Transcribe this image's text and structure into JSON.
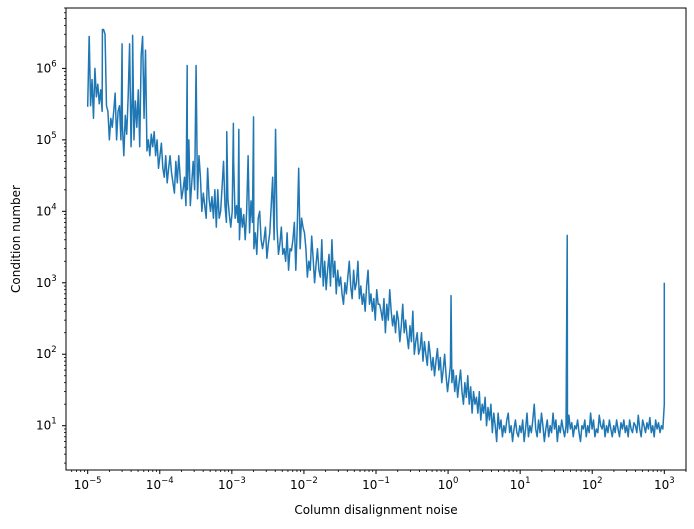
{
  "chart_data": {
    "type": "line",
    "title": "",
    "xlabel": "Column disalignment noise",
    "ylabel": "Condition number",
    "xscale": "log",
    "yscale": "log",
    "xlim": [
      5e-06,
      2000
    ],
    "ylim": [
      2.4,
      7000000
    ],
    "grid": false,
    "color": "#1f77b4",
    "x_ticks": [
      {
        "base": "10",
        "exp": "−5",
        "value": 1e-05
      },
      {
        "base": "10",
        "exp": "−4",
        "value": 0.0001
      },
      {
        "base": "10",
        "exp": "−3",
        "value": 0.001
      },
      {
        "base": "10",
        "exp": "−2",
        "value": 0.01
      },
      {
        "base": "10",
        "exp": "−1",
        "value": 0.1
      },
      {
        "base": "10",
        "exp": "0",
        "value": 1
      },
      {
        "base": "10",
        "exp": "1",
        "value": 10
      },
      {
        "base": "10",
        "exp": "2",
        "value": 100
      },
      {
        "base": "10",
        "exp": "3",
        "value": 1000
      }
    ],
    "y_ticks": [
      {
        "base": "10",
        "exp": "1",
        "value": 10
      },
      {
        "base": "10",
        "exp": "2",
        "value": 100
      },
      {
        "base": "10",
        "exp": "3",
        "value": 1000
      },
      {
        "base": "10",
        "exp": "4",
        "value": 10000
      },
      {
        "base": "10",
        "exp": "5",
        "value": 100000
      },
      {
        "base": "10",
        "exp": "6",
        "value": 1000000
      }
    ],
    "x_start": 1e-05,
    "x_end": 1000,
    "y": [
      290000,
      2800000,
      300000,
      700000,
      200000,
      1000000,
      400000,
      600000,
      320000,
      500000,
      250000,
      3500000,
      3000000,
      300000,
      250000,
      100000,
      200000,
      150000,
      250000,
      450000,
      100000,
      250000,
      300000,
      100000,
      160000,
      60000,
      220000,
      120000,
      400000,
      2200000,
      80000,
      600000,
      100000,
      350000,
      150000,
      500000,
      80000,
      1500000,
      2800000,
      200000,
      1800000,
      70000,
      100000,
      60000,
      120000,
      80000,
      130000,
      60000,
      100000,
      40000,
      60000,
      90000,
      40000,
      30000,
      60000,
      25000,
      40000,
      60000,
      35000,
      25000,
      18000,
      50000,
      25000,
      60000,
      30000,
      15000,
      20000,
      30000,
      12000,
      20000,
      100000,
      12000,
      25000,
      50000,
      20000,
      1100000,
      15000,
      60000,
      30000,
      10000,
      18000,
      12000,
      8000,
      40000,
      15000,
      10000,
      16000,
      8000,
      20000,
      6000,
      20000,
      8000,
      10000,
      22000,
      50000,
      12000,
      7000,
      15000,
      9000,
      6000,
      10000,
      50000,
      8000,
      12000,
      7000,
      4000,
      11000,
      6000,
      9000,
      4000,
      10000,
      60000,
      5000,
      14000,
      7000,
      3000,
      5000,
      2500,
      8000,
      10000,
      4000,
      3000,
      4000,
      6000,
      2200,
      3500,
      5000,
      12000,
      30000,
      4000,
      140000,
      6000,
      2500,
      3500,
      6000,
      2500,
      3000,
      2000,
      5000,
      1500,
      3000,
      2800,
      4000,
      7000,
      1500,
      6000,
      40000,
      3000,
      8000,
      6000,
      5000,
      3000,
      1200,
      2000,
      1500,
      4500,
      2200,
      1000,
      1800,
      3000,
      1500,
      1200,
      4000,
      900,
      2000,
      800,
      1500,
      2500,
      900,
      4000,
      1200,
      2000,
      700,
      1500,
      900,
      1200,
      700,
      500,
      1000,
      700,
      1200,
      2000,
      900,
      600,
      1500,
      800,
      1000,
      2000,
      600,
      900,
      500,
      700,
      400,
      900,
      1500,
      500,
      700,
      400,
      600,
      300,
      800,
      500,
      500,
      400,
      300,
      600,
      200,
      500,
      300,
      800,
      400,
      250,
      350,
      200,
      400,
      300,
      150,
      250,
      500,
      200,
      300,
      180,
      120,
      250,
      150,
      400,
      100,
      150,
      200,
      100,
      120,
      200,
      80,
      150,
      100,
      70,
      150,
      100,
      60,
      90,
      50,
      80,
      120,
      60,
      90,
      40,
      60,
      100,
      50,
      30,
      45,
      70,
      40,
      60,
      30,
      50,
      25,
      40,
      60,
      30,
      20,
      40,
      25,
      50,
      20,
      35,
      15,
      30,
      20,
      25,
      15,
      30,
      12,
      20,
      15,
      25,
      10,
      18,
      12,
      20,
      8,
      15,
      10,
      6,
      15,
      9,
      12,
      7,
      10,
      8,
      12,
      15,
      8,
      10,
      6,
      9,
      12,
      8,
      7,
      10,
      8,
      12,
      6,
      9,
      15,
      7,
      10,
      8,
      12,
      20,
      9,
      7,
      12,
      8,
      15,
      10,
      6,
      9,
      12,
      7,
      10,
      8,
      15,
      9,
      12,
      6,
      10,
      8,
      12,
      9,
      7,
      10,
      8,
      14,
      9,
      11,
      7,
      10,
      9,
      12,
      8,
      6,
      10,
      9,
      12,
      7,
      10,
      8,
      15,
      9,
      12,
      7,
      9,
      8,
      14,
      10,
      9,
      12,
      7,
      10,
      8,
      12,
      9,
      7,
      10,
      8,
      12,
      9,
      7,
      11,
      9,
      12,
      8,
      10,
      7,
      12,
      9,
      8,
      11,
      10,
      8,
      14,
      9,
      7,
      12,
      10,
      8,
      11,
      9,
      13,
      8,
      10,
      7,
      12,
      9,
      11,
      8,
      10,
      9,
      20
    ],
    "peaks": [
      {
        "x": 1.05e-05,
        "y": 2800000
      },
      {
        "x": 1.6e-05,
        "y": 3500000
      },
      {
        "x": 3e-05,
        "y": 2200000
      },
      {
        "x": 4.2e-05,
        "y": 2900000
      },
      {
        "x": 0.00024,
        "y": 1100000
      },
      {
        "x": 0.00085,
        "y": 130000
      },
      {
        "x": 0.00105,
        "y": 170000
      },
      {
        "x": 0.00125,
        "y": 140000
      },
      {
        "x": 0.002,
        "y": 210000
      },
      {
        "x": 1.1,
        "y": 660
      },
      {
        "x": 45,
        "y": 4600
      },
      {
        "x": 1000,
        "y": 1000
      }
    ]
  }
}
